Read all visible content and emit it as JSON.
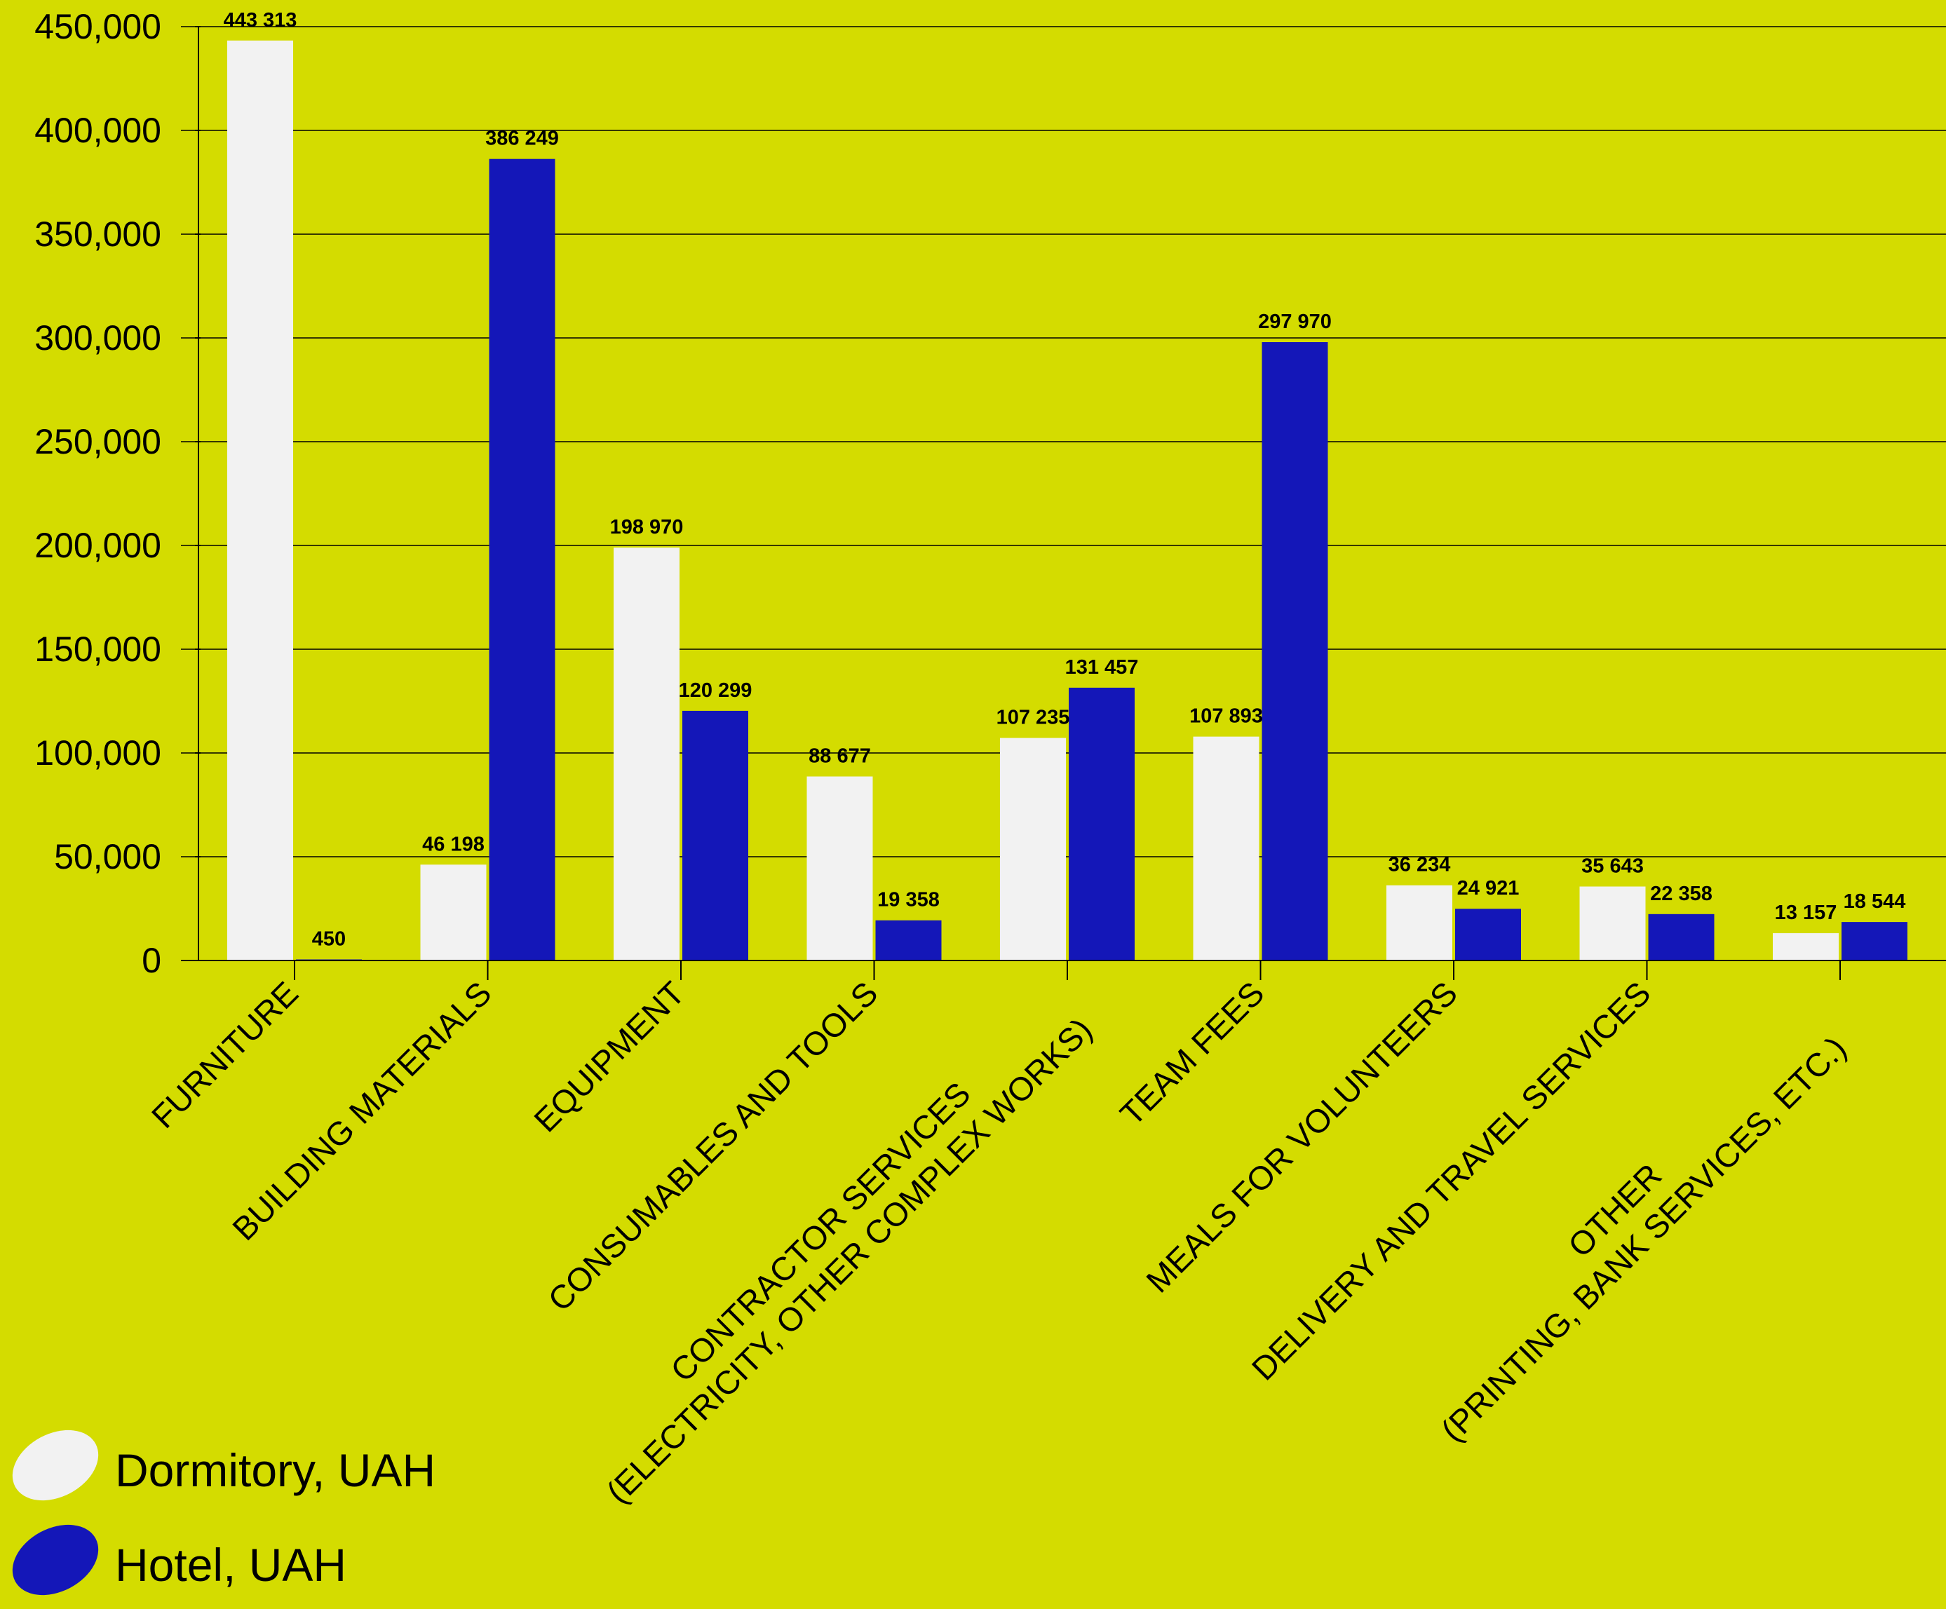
{
  "chart_data": {
    "type": "bar",
    "categories": [
      [
        "FURNITURE"
      ],
      [
        "BUILDING MATERIALS"
      ],
      [
        "EQUIPMENT"
      ],
      [
        "CONSUMABLES AND TOOLS"
      ],
      [
        "CONTRACTOR SERVICES",
        "(ELECTRICITY, OTHER COMPLEX WORKS)"
      ],
      [
        "TEAM FEES"
      ],
      [
        "MEALS FOR VOLUNTEERS"
      ],
      [
        "DELIVERY AND TRAVEL SERVICES"
      ],
      [
        "OTHER",
        "(PRINTING, BANK SERVICES, ETC.)"
      ]
    ],
    "series": [
      {
        "name": "Dormitory, UAH",
        "color": "#f2f2f2",
        "values": [
          443313,
          46198,
          198970,
          88677,
          107235,
          107893,
          36234,
          35643,
          13157
        ],
        "labels": [
          "443 313",
          "46 198",
          "198 970",
          "88 677",
          "107 235",
          "107 893",
          "36 234",
          "35 643",
          "13 157"
        ]
      },
      {
        "name": "Hotel, UAH",
        "color": "#1417b8",
        "values": [
          450,
          386249,
          120299,
          19358,
          131457,
          297970,
          24921,
          22358,
          18544
        ],
        "labels": [
          "450",
          "386 249",
          "120 299",
          "19 358",
          "131 457",
          "297 970",
          "24 921",
          "22 358",
          "18 544"
        ]
      }
    ],
    "yticks": [
      "0",
      "50,000",
      "100,000",
      "150,000",
      "200,000",
      "250,000",
      "300,000",
      "350,000",
      "400,000",
      "450,000"
    ],
    "ylim": [
      0,
      450000
    ],
    "grid": true,
    "legend_position": "bottom-left",
    "title": "",
    "xlabel": "",
    "ylabel": ""
  },
  "colors": {
    "background": "#d4dc00",
    "dormitory": "#f2f2f2",
    "hotel": "#1417b8"
  }
}
